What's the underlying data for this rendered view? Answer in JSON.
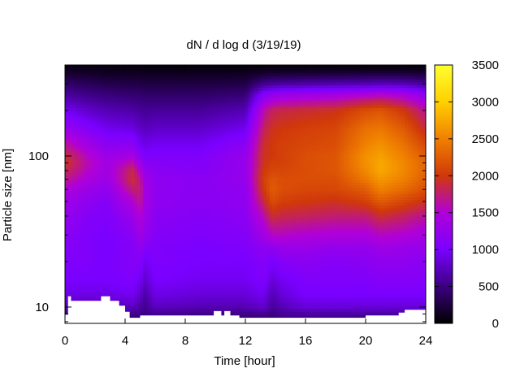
{
  "chart_data": {
    "type": "heatmap",
    "title": "dN / d log d (3/19/19)",
    "xlabel": "Time [hour]",
    "ylabel": "Particle size [nm]",
    "xlim": [
      0,
      24
    ],
    "ylim": [
      7.8,
      400
    ],
    "y_scale": "log",
    "x_ticks": [
      0,
      4,
      8,
      12,
      16,
      20,
      24
    ],
    "x_tick_labels": [
      "0",
      "4",
      "8",
      "12",
      "16",
      "20",
      "24"
    ],
    "y_ticks": [
      10,
      100
    ],
    "y_tick_labels": [
      "10",
      "100"
    ],
    "colorbar": {
      "range": [
        0,
        3500
      ],
      "ticks": [
        0,
        500,
        1000,
        1500,
        2000,
        2500,
        3000,
        3500
      ],
      "tick_labels": [
        "0",
        "500",
        "1000",
        "1500",
        "2000",
        "2500",
        "3000",
        "3500"
      ],
      "colors": [
        "#000000",
        "#3b0080",
        "#7a00ff",
        "#b000d8",
        "#d0380a",
        "#f08000",
        "#ffd000",
        "#ffff30"
      ]
    },
    "profile_size_grid_nm": [
      8,
      10,
      12,
      15,
      20,
      25,
      30,
      40,
      50,
      60,
      70,
      80,
      90,
      100,
      120,
      150,
      200,
      250,
      300,
      350,
      380
    ],
    "profiles": [
      {
        "hour": 0,
        "values": [
          300,
          700,
          900,
          1000,
          1050,
          1100,
          1150,
          1250,
          1350,
          1500,
          1700,
          1850,
          1950,
          1900,
          1650,
          1300,
          950,
          650,
          400,
          200,
          100
        ]
      },
      {
        "hour": 1.5,
        "values": [
          300,
          700,
          900,
          1000,
          1050,
          1050,
          1050,
          1100,
          1200,
          1300,
          1450,
          1550,
          1600,
          1550,
          1350,
          1100,
          800,
          550,
          350,
          180,
          90
        ]
      },
      {
        "hour": 2.8,
        "values": [
          300,
          700,
          900,
          1000,
          1000,
          1000,
          1000,
          1050,
          1100,
          1200,
          1300,
          1350,
          1350,
          1300,
          1150,
          950,
          700,
          500,
          300,
          150,
          80
        ]
      },
      {
        "hour": 4.5,
        "values": [
          350,
          750,
          950,
          1050,
          1100,
          1100,
          1150,
          1300,
          1500,
          1750,
          1900,
          1850,
          1650,
          1400,
          1150,
          900,
          650,
          450,
          280,
          140,
          70
        ]
      },
      {
        "hour": 5,
        "values": [
          400,
          650,
          800,
          950,
          1100,
          1200,
          1350,
          1500,
          1700,
          1750,
          1700,
          1500,
          1300,
          1150,
          950,
          800,
          600,
          450,
          280,
          140,
          70
        ]
      },
      {
        "hour": 5.3,
        "values": [
          500,
          550,
          650,
          800,
          950,
          1100,
          1250,
          1350,
          1400,
          1400,
          1350,
          1250,
          1150,
          1050,
          900,
          750,
          580,
          420,
          260,
          130,
          60
        ]
      },
      {
        "hour": 6,
        "values": [
          400,
          750,
          900,
          1000,
          1050,
          1050,
          1100,
          1150,
          1200,
          1200,
          1200,
          1150,
          1100,
          1050,
          950,
          800,
          600,
          420,
          260,
          130,
          60
        ]
      },
      {
        "hour": 9,
        "values": [
          350,
          700,
          850,
          950,
          1000,
          1000,
          1050,
          1100,
          1150,
          1150,
          1150,
          1100,
          1080,
          1050,
          950,
          800,
          600,
          420,
          260,
          130,
          60
        ]
      },
      {
        "hour": 12,
        "values": [
          350,
          700,
          850,
          950,
          1000,
          1050,
          1100,
          1150,
          1200,
          1200,
          1250,
          1250,
          1250,
          1250,
          1150,
          950,
          700,
          480,
          280,
          140,
          60
        ]
      },
      {
        "hour": 13.2,
        "values": [
          350,
          800,
          950,
          1050,
          1100,
          1200,
          1350,
          1600,
          1850,
          2000,
          2050,
          2000,
          1950,
          1950,
          1900,
          1800,
          1600,
          1150,
          550,
          200,
          70
        ]
      },
      {
        "hour": 13.8,
        "values": [
          400,
          600,
          700,
          850,
          1000,
          1200,
          1550,
          1900,
          2150,
          2250,
          2200,
          2100,
          2050,
          2000,
          2000,
          1950,
          1800,
          1300,
          600,
          220,
          70
        ]
      },
      {
        "hour": 14.4,
        "values": [
          450,
          700,
          850,
          950,
          1100,
          1300,
          1550,
          1850,
          2050,
          2150,
          2150,
          2100,
          2050,
          2050,
          2050,
          2000,
          1850,
          1350,
          620,
          220,
          70
        ]
      },
      {
        "hour": 16,
        "values": [
          400,
          850,
          1000,
          1050,
          1150,
          1300,
          1500,
          1800,
          2000,
          2100,
          2150,
          2150,
          2150,
          2150,
          2100,
          2050,
          1900,
          1400,
          650,
          230,
          70
        ]
      },
      {
        "hour": 18,
        "values": [
          400,
          850,
          1000,
          1050,
          1100,
          1250,
          1450,
          1750,
          1950,
          2100,
          2150,
          2200,
          2200,
          2200,
          2150,
          2100,
          1950,
          1450,
          680,
          240,
          70
        ]
      },
      {
        "hour": 20,
        "values": [
          400,
          850,
          1000,
          1050,
          1150,
          1250,
          1450,
          1750,
          2050,
          2250,
          2450,
          2550,
          2600,
          2600,
          2500,
          2400,
          2150,
          1550,
          700,
          250,
          70
        ]
      },
      {
        "hour": 21,
        "values": [
          400,
          850,
          1000,
          1100,
          1200,
          1350,
          1550,
          1900,
          2250,
          2500,
          2650,
          2750,
          2750,
          2700,
          2600,
          2450,
          2200,
          1600,
          720,
          260,
          70
        ]
      },
      {
        "hour": 22.5,
        "values": [
          400,
          850,
          1000,
          1100,
          1200,
          1300,
          1500,
          1800,
          2100,
          2350,
          2500,
          2550,
          2550,
          2500,
          2400,
          2250,
          2000,
          1500,
          700,
          250,
          70
        ]
      },
      {
        "hour": 24,
        "values": [
          400,
          850,
          1000,
          1100,
          1150,
          1250,
          1400,
          1650,
          1950,
          2150,
          2250,
          2300,
          2300,
          2250,
          2100,
          1900,
          1650,
          1250,
          600,
          220,
          70
        ]
      }
    ],
    "no_data_lower_boundary": [
      {
        "hour": 0,
        "size_nm": 8.9
      },
      {
        "hour": 0.2,
        "size_nm": 11.8
      },
      {
        "hour": 0.4,
        "size_nm": 11.0
      },
      {
        "hour": 2.4,
        "size_nm": 11.8
      },
      {
        "hour": 3.0,
        "size_nm": 11.0
      },
      {
        "hour": 3.6,
        "size_nm": 10.2
      },
      {
        "hour": 4.0,
        "size_nm": 9.3
      },
      {
        "hour": 4.3,
        "size_nm": 8.5
      },
      {
        "hour": 5.0,
        "size_nm": 8.8
      },
      {
        "hour": 9.8,
        "size_nm": 8.8
      },
      {
        "hour": 9.9,
        "size_nm": 9.4
      },
      {
        "hour": 10.4,
        "size_nm": 8.8
      },
      {
        "hour": 10.6,
        "size_nm": 9.4
      },
      {
        "hour": 11.0,
        "size_nm": 8.8
      },
      {
        "hour": 11.6,
        "size_nm": 8.5
      },
      {
        "hour": 19.5,
        "size_nm": 8.5
      },
      {
        "hour": 20.0,
        "size_nm": 8.8
      },
      {
        "hour": 22.2,
        "size_nm": 9.2
      },
      {
        "hour": 22.6,
        "size_nm": 9.6
      },
      {
        "hour": 24.0,
        "size_nm": 9.6
      }
    ]
  }
}
